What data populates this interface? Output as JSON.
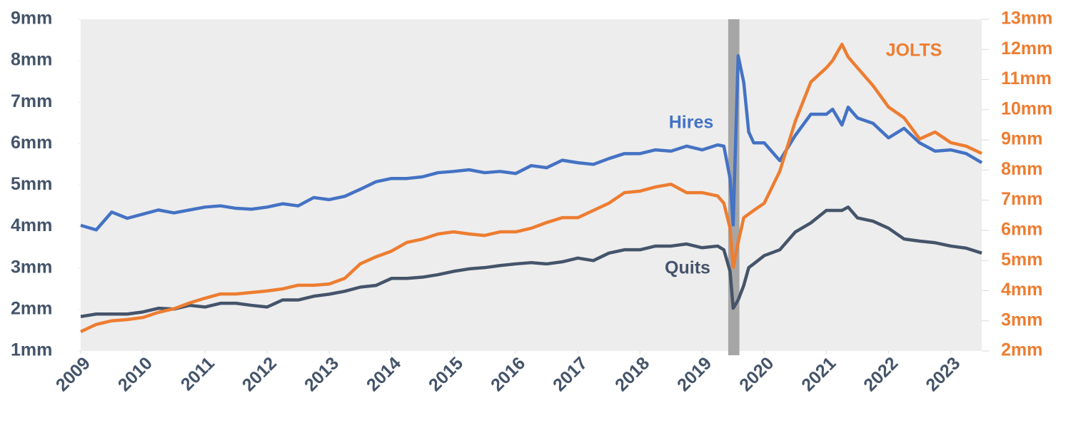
{
  "chart_data": {
    "type": "line",
    "x": [
      2009,
      2009.25,
      2009.5,
      2009.75,
      2010,
      2010.25,
      2010.5,
      2010.75,
      2011,
      2011.25,
      2011.5,
      2011.75,
      2012,
      2012.25,
      2012.5,
      2012.75,
      2013,
      2013.25,
      2013.5,
      2013.75,
      2014,
      2014.25,
      2014.5,
      2014.75,
      2015,
      2015.25,
      2015.5,
      2015.75,
      2016,
      2016.25,
      2016.5,
      2016.75,
      2017,
      2017.25,
      2017.5,
      2017.75,
      2018,
      2018.25,
      2018.5,
      2018.75,
      2019,
      2019.25,
      2019.35,
      2019.45,
      2019.5,
      2019.58,
      2019.67,
      2019.75,
      2019.83,
      2020,
      2020.25,
      2020.5,
      2020.75,
      2021,
      2021.1,
      2021.25,
      2021.35,
      2021.5,
      2021.75,
      2022,
      2022.25,
      2022.5,
      2022.75,
      2023,
      2023.25,
      2023.5
    ],
    "series": [
      {
        "name": "Hires",
        "color": "#4472c4",
        "values": [
          4.03,
          3.92,
          4.35,
          4.2,
          4.3,
          4.4,
          4.33,
          4.4,
          4.47,
          4.5,
          4.44,
          4.42,
          4.47,
          4.55,
          4.5,
          4.7,
          4.65,
          4.73,
          4.9,
          5.08,
          5.16,
          5.16,
          5.2,
          5.3,
          5.33,
          5.37,
          5.3,
          5.33,
          5.28,
          5.47,
          5.42,
          5.6,
          5.54,
          5.5,
          5.64,
          5.76,
          5.76,
          5.85,
          5.82,
          5.94,
          5.85,
          5.97,
          5.94,
          5.16,
          4.04,
          8.12,
          7.48,
          6.28,
          6.02,
          6.02,
          5.59,
          6.2,
          6.71,
          6.71,
          6.83,
          6.45,
          6.88,
          6.62,
          6.49,
          6.14,
          6.37,
          6.02,
          5.82,
          5.85,
          5.76,
          5.54
        ]
      },
      {
        "name": "Quits",
        "color": "#44546a",
        "values": [
          1.83,
          1.89,
          1.89,
          1.89,
          1.94,
          2.03,
          2.01,
          2.1,
          2.06,
          2.15,
          2.15,
          2.1,
          2.06,
          2.23,
          2.23,
          2.32,
          2.37,
          2.44,
          2.54,
          2.58,
          2.75,
          2.75,
          2.78,
          2.84,
          2.92,
          2.98,
          3.01,
          3.06,
          3.1,
          3.13,
          3.1,
          3.15,
          3.24,
          3.18,
          3.36,
          3.44,
          3.44,
          3.53,
          3.53,
          3.58,
          3.49,
          3.53,
          3.44,
          2.92,
          2.03,
          2.23,
          2.58,
          3.01,
          3.1,
          3.3,
          3.44,
          3.87,
          4.09,
          4.39,
          4.39,
          4.39,
          4.47,
          4.21,
          4.13,
          3.96,
          3.7,
          3.65,
          3.61,
          3.53,
          3.48,
          3.36
        ]
      },
      {
        "name": "JOLTS",
        "color": "#ed7d31",
        "axis": "y2",
        "values": [
          2.64,
          2.88,
          3.0,
          3.04,
          3.11,
          3.28,
          3.4,
          3.59,
          3.75,
          3.89,
          3.89,
          3.94,
          3.99,
          4.06,
          4.18,
          4.18,
          4.22,
          4.41,
          4.89,
          5.12,
          5.31,
          5.6,
          5.71,
          5.88,
          5.95,
          5.88,
          5.83,
          5.95,
          5.95,
          6.07,
          6.26,
          6.42,
          6.42,
          6.66,
          6.9,
          7.25,
          7.3,
          7.44,
          7.53,
          7.25,
          7.25,
          7.14,
          6.9,
          6.07,
          4.77,
          5.6,
          6.42,
          6.54,
          6.66,
          6.9,
          7.96,
          9.62,
          10.92,
          11.39,
          11.63,
          12.17,
          11.75,
          11.39,
          10.8,
          10.09,
          9.73,
          9.03,
          9.26,
          8.91,
          8.79,
          8.55
        ]
      }
    ],
    "xlim": [
      2009,
      2023.5
    ],
    "xticks": [
      2009,
      2010,
      2011,
      2012,
      2013,
      2014,
      2015,
      2016,
      2017,
      2018,
      2019,
      2020,
      2021,
      2022,
      2023
    ],
    "ylim": [
      1,
      9
    ],
    "yticks": [
      {
        "value": 1,
        "label": "1mm"
      },
      {
        "value": 2,
        "label": "2mm"
      },
      {
        "value": 3,
        "label": "3mm"
      },
      {
        "value": 4,
        "label": "4mm"
      },
      {
        "value": 5,
        "label": "5mm"
      },
      {
        "value": 6,
        "label": "6mm"
      },
      {
        "value": 7,
        "label": "7mm"
      },
      {
        "value": 8,
        "label": "8mm"
      },
      {
        "value": 9,
        "label": "9mm"
      }
    ],
    "y2lim": [
      2,
      13
    ],
    "y2ticks": [
      {
        "value": 2,
        "label": "2mm"
      },
      {
        "value": 3,
        "label": "3mm"
      },
      {
        "value": 4,
        "label": "4mm"
      },
      {
        "value": 5,
        "label": "5mm"
      },
      {
        "value": 6,
        "label": "6mm"
      },
      {
        "value": 7,
        "label": "7mm"
      },
      {
        "value": 8,
        "label": "8mm"
      },
      {
        "value": 9,
        "label": "9mm"
      },
      {
        "value": 10,
        "label": "10mm"
      },
      {
        "value": 11,
        "label": "11mm"
      },
      {
        "value": 12,
        "label": "12mm"
      },
      {
        "value": 13,
        "label": "13mm"
      }
    ],
    "shading": [
      2019.42,
      2019.6
    ],
    "shading_color": "#a6a6a6",
    "plot_background": "#ededed",
    "y_color": "#44546a",
    "y2_color": "#ed7d31"
  }
}
